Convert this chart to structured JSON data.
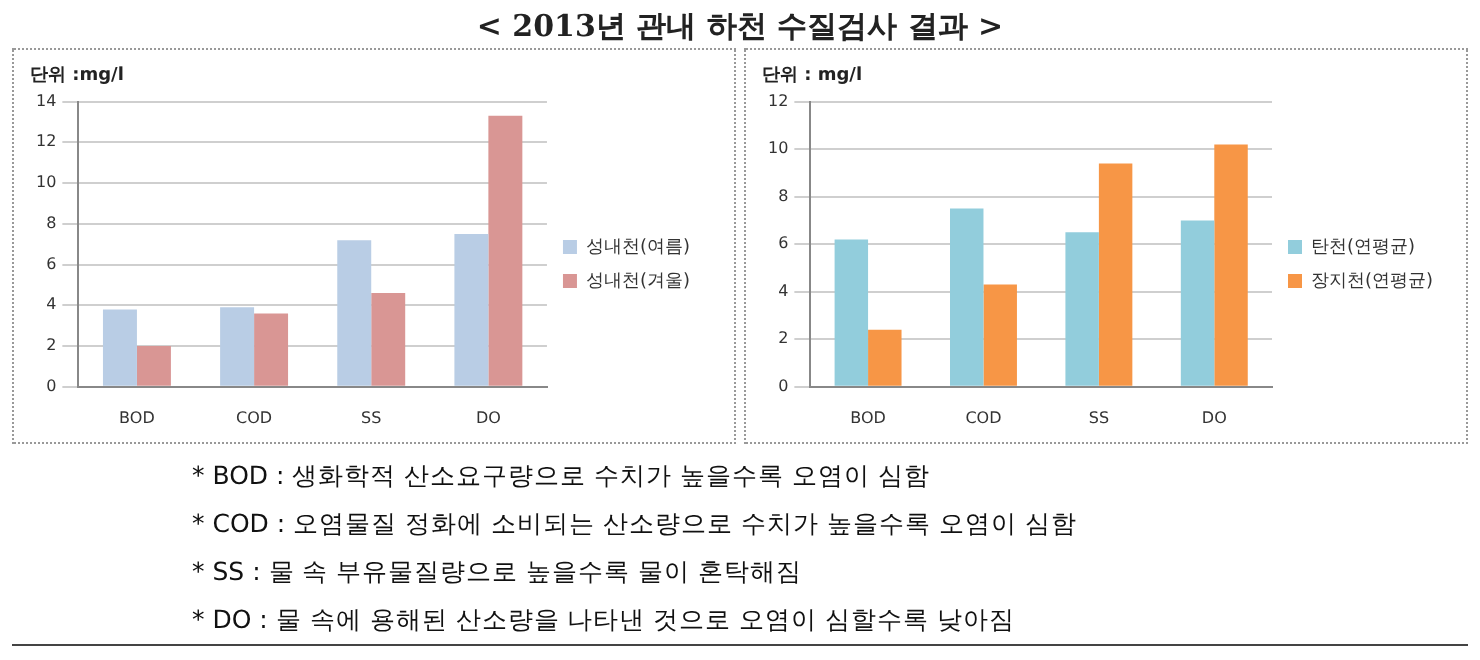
{
  "chart_data": [
    {
      "type": "bar",
      "title": "< 2013년 관내 하천 수질검사 결과 >",
      "ylabel": "단위 :mg/l",
      "categories": [
        "BOD",
        "COD",
        "SS",
        "DO"
      ],
      "series": [
        {
          "name": "성내천(여름)",
          "color": "#b9cde5",
          "values": [
            3.8,
            3.9,
            7.2,
            7.5
          ]
        },
        {
          "name": "성내천(겨울)",
          "color": "#d99694",
          "values": [
            2.0,
            3.6,
            4.6,
            13.3
          ]
        }
      ],
      "ylim": [
        0,
        14
      ],
      "yticks": [
        0,
        2,
        4,
        6,
        8,
        10,
        12,
        14
      ],
      "grid": "y",
      "legend": "right"
    },
    {
      "type": "bar",
      "ylabel": "단위 : mg/l",
      "categories": [
        "BOD",
        "COD",
        "SS",
        "DO"
      ],
      "series": [
        {
          "name": "탄천(연평균)",
          "color": "#92cddc",
          "values": [
            6.2,
            7.5,
            6.5,
            7.0
          ]
        },
        {
          "name": "장지천(연평균)",
          "color": "#f79646",
          "values": [
            2.4,
            4.3,
            9.4,
            10.2
          ]
        }
      ],
      "ylim": [
        0,
        12
      ],
      "yticks": [
        0,
        2,
        4,
        6,
        8,
        10,
        12
      ],
      "grid": "y",
      "legend": "right",
      "annotations": [
        "* BOD : 생화학적 산소요구량으로 수치가 높을수록 오염이 심함",
        "* COD : 오염물질 정화에 소비되는 산소량으로 수치가 높을수록 오염이 심함",
        "* SS : 물 속 부유물질량으로 높을수록 물이 혼탁해짐",
        "* DO : 물 속에 용해된 산소량을 나타낸 것으로 오염이 심할수록 낮아짐"
      ]
    }
  ]
}
